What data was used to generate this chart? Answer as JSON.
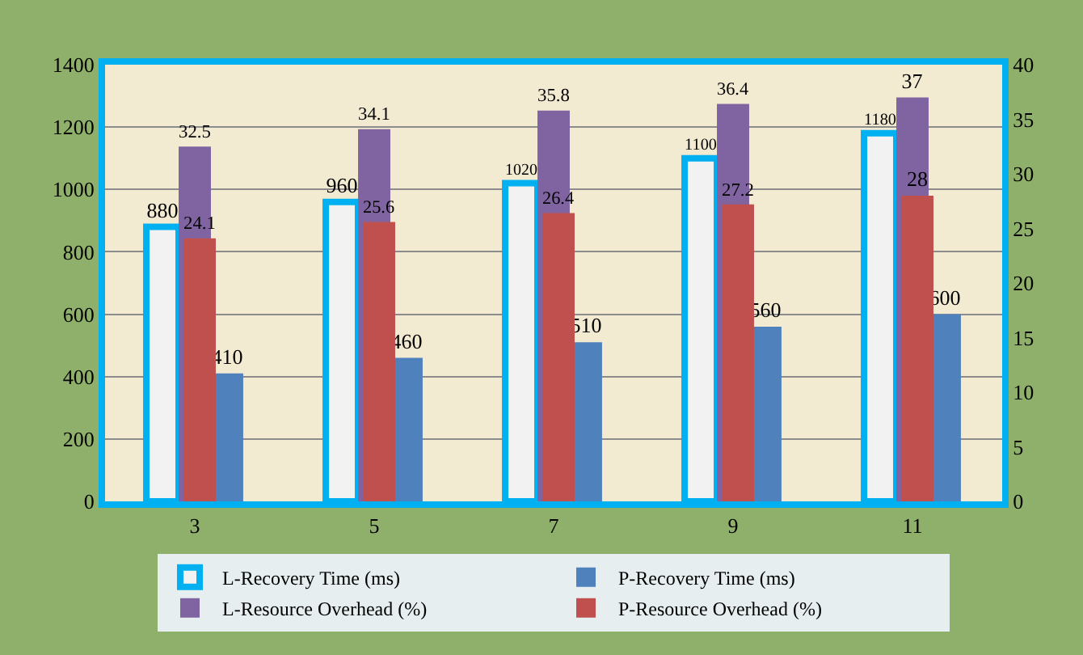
{
  "chart_data": {
    "type": "bar",
    "categories": [
      "3",
      "5",
      "7",
      "9",
      "11"
    ],
    "series": [
      {
        "name": "L-Recovery Time (ms)",
        "color": "#f2f2f2",
        "values": [
          880,
          960,
          1020,
          1100,
          1180
        ]
      },
      {
        "name": "P-Recovery Time (ms)",
        "color": "#4f81bd",
        "values": [
          410,
          460,
          510,
          560,
          600
        ]
      },
      {
        "name": "L-Resource Overhead (%)",
        "color": "#8064a2",
        "axis": "y2",
        "values": [
          32.5,
          34.1,
          35.8,
          36.4,
          37
        ]
      },
      {
        "name": "P-Resource Overhead (%)",
        "color": "#c0504d",
        "axis": "y2",
        "values": [
          24.1,
          25.6,
          26.4,
          27.2,
          28
        ]
      }
    ],
    "ylim": [
      0,
      1400
    ],
    "yticks": [
      0,
      200,
      400,
      600,
      800,
      1000,
      1200,
      1400
    ],
    "y2lim": [
      0,
      40
    ],
    "y2ticks": [
      0,
      5,
      10,
      15,
      20,
      25,
      30,
      35,
      40
    ],
    "grid": "y",
    "legend": "bottom",
    "data_labels": true
  }
}
